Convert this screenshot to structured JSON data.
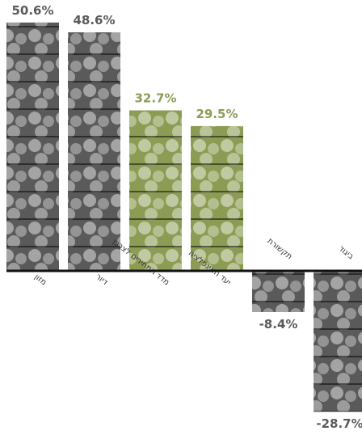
{
  "chart_data": {
    "type": "bar",
    "categories": [
      "מזון",
      "דיור",
      "מדד המחירים לצרכן",
      "יעד האינפלציה",
      "תקשורת",
      "ביגוד"
    ],
    "values": [
      50.6,
      48.6,
      32.7,
      29.5,
      -8.4,
      -28.7
    ],
    "value_labels": [
      "50.6%",
      "48.6%",
      "32.7%",
      "29.5%",
      "-8.4%",
      "-28.7%"
    ],
    "colors": [
      "#5a5a5a",
      "#5a5a5a",
      "#8c9c55",
      "#8c9c55",
      "#5a5a5a",
      "#5a5a5a"
    ]
  }
}
